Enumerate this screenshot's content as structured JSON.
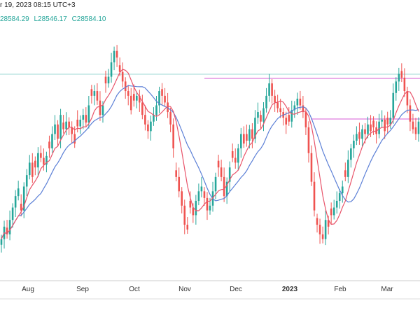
{
  "header": {
    "title_fragment": "r 19, 2023 08:15 UTC+3"
  },
  "ohlc": {
    "values": [
      "28584.29",
      "L28546.17",
      "C28584.10"
    ],
    "color": "#26a69a"
  },
  "colors": {
    "up": "#26a69a",
    "down": "#ef5350",
    "ma_fast": "#e8546a",
    "ma_slow": "#5b7fd6",
    "hline_magenta": "#d65ed6",
    "hline_cyan": "#9fd8d6",
    "axis": "#cccccc"
  },
  "chart_data": {
    "type": "candlestick",
    "x_tick_labels": [
      "Aug",
      "Sep",
      "Oct",
      "Nov",
      "Dec",
      "2023",
      "Feb",
      "Mar"
    ],
    "close": [
      21.5,
      22.8,
      22.0,
      23.5,
      24.8,
      26.0,
      26.8,
      24.5,
      27.0,
      28.2,
      29.5,
      28.0,
      29.0,
      30.5,
      30.0,
      29.3,
      30.2,
      31.0,
      32.5,
      33.5,
      32.0,
      34.5,
      33.0,
      33.8,
      33.2,
      32.5,
      31.5,
      33.3,
      34.0,
      34.5,
      33.7,
      35.5,
      36.5,
      37.0,
      36.0,
      34.5,
      35.5,
      37.8,
      38.5,
      40.0,
      41.2,
      40.5,
      39.0,
      38.0,
      37.0,
      36.5,
      35.0,
      36.0,
      36.5,
      35.8,
      34.5,
      33.5,
      32.8,
      33.8,
      34.5,
      35.5,
      37.0,
      36.5,
      35.8,
      34.8,
      33.5,
      31.0,
      28.0,
      26.5,
      25.0,
      23.0,
      22.5,
      24.8,
      24.0,
      25.5,
      26.5,
      27.0,
      25.8,
      24.5,
      25.0,
      26.5,
      28.0,
      29.0,
      28.0,
      26.0,
      27.5,
      29.0,
      30.0,
      29.5,
      31.0,
      32.5,
      31.5,
      31.8,
      33.0,
      32.0,
      34.2,
      34.8,
      33.8,
      35.2,
      36.5,
      37.8,
      36.5,
      35.8,
      35.2,
      34.8,
      34.2,
      33.5,
      33.8,
      35.0,
      35.5,
      36.2,
      35.5,
      34.8,
      33.2,
      30.5,
      27.5,
      24.5,
      23.0,
      22.0,
      21.5,
      23.5,
      22.8,
      24.0,
      24.8,
      25.5,
      26.3,
      27.0,
      28.0,
      29.8,
      31.0,
      31.8,
      32.5,
      32.0,
      33.0,
      32.5,
      33.5,
      32.8,
      33.2,
      32.5,
      33.8,
      34.0,
      32.8,
      33.5,
      34.2,
      36.8,
      38.0,
      38.8,
      38.4,
      37.0,
      35.5,
      33.8,
      33.0,
      32.5,
      33.8
    ]
  }
}
